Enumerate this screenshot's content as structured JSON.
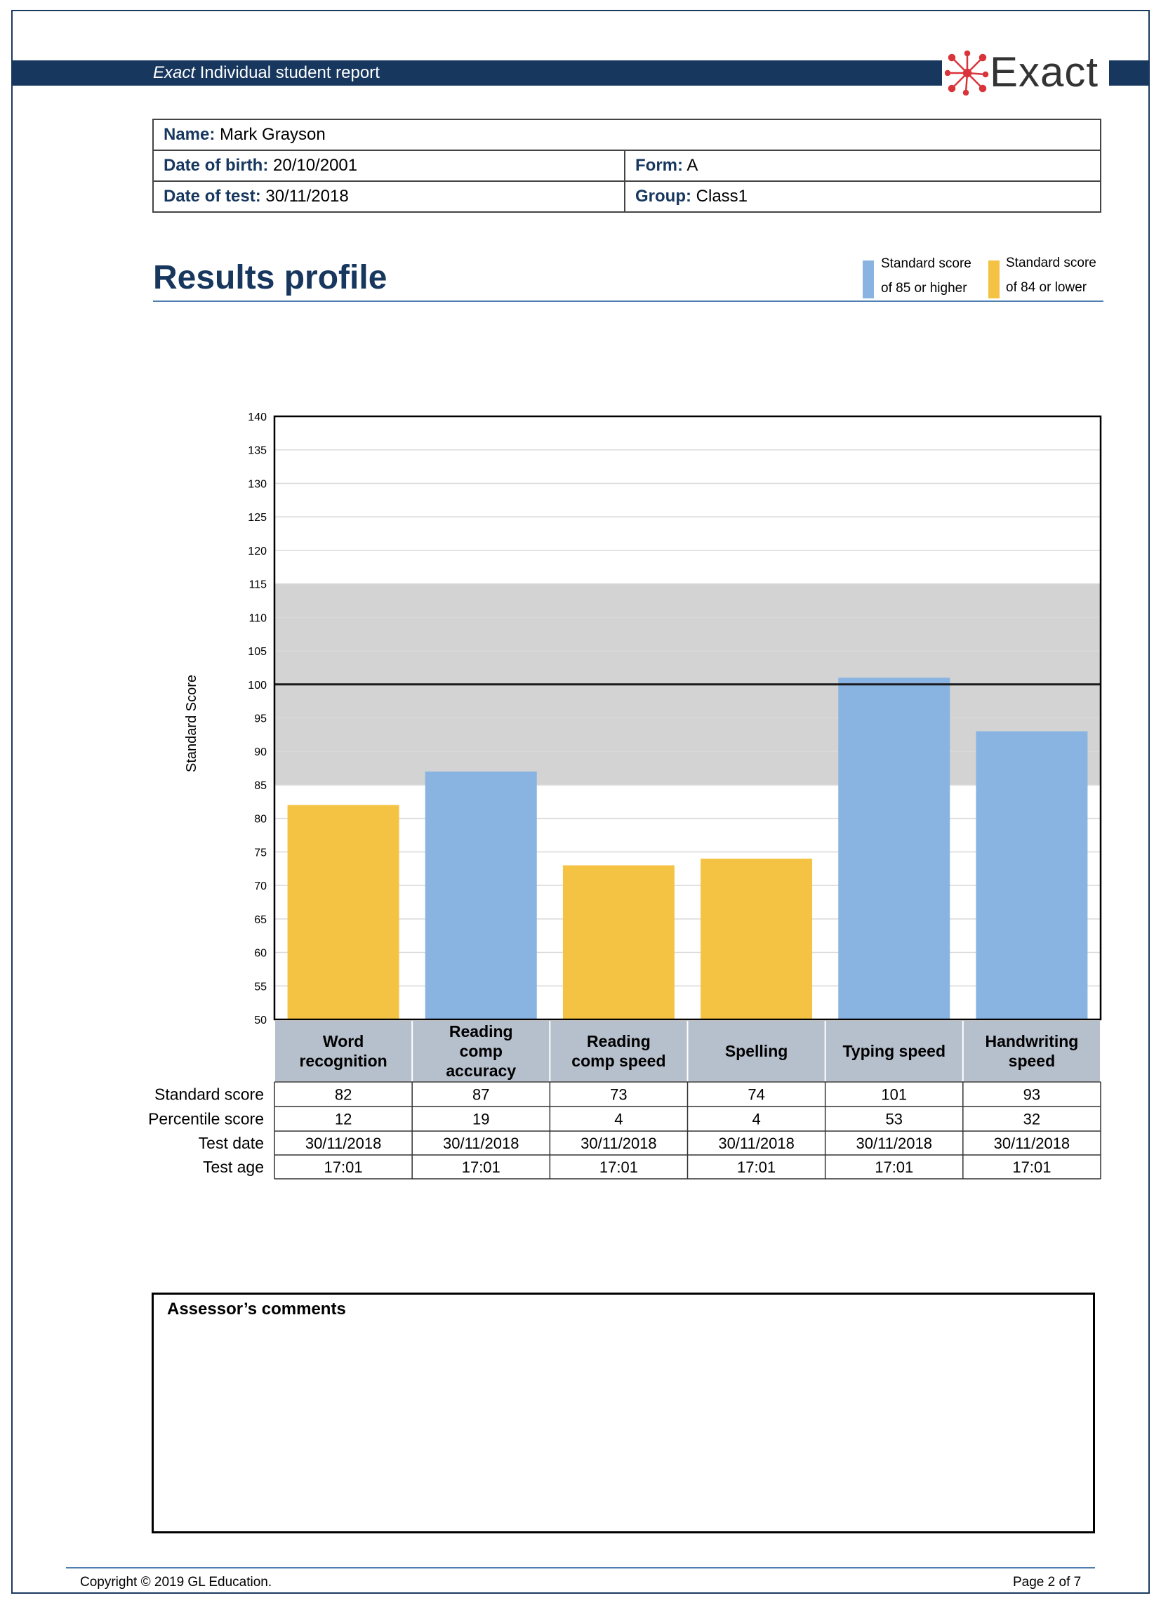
{
  "header": {
    "brand_italic": "Exact",
    "title_rest": " Individual student report",
    "logo_text": "Exact"
  },
  "student": {
    "name_label": "Name:",
    "name": "Mark Grayson",
    "dob_label": "Date of birth:",
    "dob": "20/10/2001",
    "form_label": "Form:",
    "form": "A",
    "test_date_label": "Date of test:",
    "test_date": "30/11/2018",
    "group_label": "Group:",
    "group": "Class1"
  },
  "results": {
    "title": "Results profile",
    "legend": [
      {
        "line1": "Standard score",
        "line2": "of 85 or higher",
        "color": "#89b4e2"
      },
      {
        "line1": "Standard score",
        "line2": "of 84 or lower",
        "color": "#f5c344"
      }
    ]
  },
  "chart_data": {
    "type": "bar",
    "ylabel": "Standard Score",
    "ylim": [
      50,
      140
    ],
    "ytick_step": 5,
    "average_band": [
      85,
      115
    ],
    "mean_line": 100,
    "threshold": 85,
    "colors": {
      "above": "#89b4e2",
      "below": "#f5c344",
      "band": "#d3d3d3",
      "header": "#b6bfcc"
    },
    "categories": [
      [
        "Word",
        "recognition"
      ],
      [
        "Reading",
        "comp",
        "accuracy"
      ],
      [
        "Reading",
        "comp speed"
      ],
      [
        "Spelling"
      ],
      [
        "Typing speed"
      ],
      [
        "Handwriting",
        "speed"
      ]
    ],
    "values": [
      82,
      87,
      73,
      74,
      101,
      93
    ],
    "table": {
      "row_labels": [
        "Standard score",
        "Percentile score",
        "Test date",
        "Test age"
      ],
      "rows": [
        [
          "82",
          "87",
          "73",
          "74",
          "101",
          "93"
        ],
        [
          "12",
          "19",
          "4",
          "4",
          "53",
          "32"
        ],
        [
          "30/11/2018",
          "30/11/2018",
          "30/11/2018",
          "30/11/2018",
          "30/11/2018",
          "30/11/2018"
        ],
        [
          "17:01",
          "17:01",
          "17:01",
          "17:01",
          "17:01",
          "17:01"
        ]
      ]
    }
  },
  "comments": {
    "title": "Assessor’s comments"
  },
  "footer": {
    "copyright": "Copyright © 2019 GL Education.",
    "page": "Page 2 of 7"
  }
}
